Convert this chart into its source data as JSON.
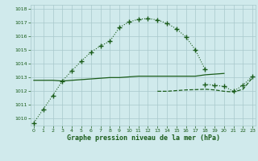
{
  "title": "Graphe pression niveau de la mer (hPa)",
  "bg_color": "#d0eaec",
  "grid_color": "#a8c8cc",
  "line_color": "#1a5c1a",
  "curve1_x": [
    0,
    1,
    2,
    3,
    4,
    5,
    6,
    7,
    8,
    9,
    10,
    11,
    12,
    13,
    14,
    15,
    16,
    17,
    18
  ],
  "curve1_y": [
    1009.7,
    1010.7,
    1011.7,
    1012.75,
    1013.5,
    1014.2,
    1014.85,
    1015.3,
    1015.65,
    1016.65,
    1017.05,
    1017.25,
    1017.3,
    1017.2,
    1016.95,
    1016.55,
    1015.95,
    1015.0,
    1013.6
  ],
  "flat1_x": [
    0,
    1,
    2,
    3,
    4,
    5,
    6,
    7,
    8,
    9,
    10,
    11,
    12,
    13,
    14,
    15,
    16,
    17,
    18,
    19,
    20
  ],
  "flat1_y": [
    1012.8,
    1012.8,
    1012.8,
    1012.75,
    1012.8,
    1012.85,
    1012.9,
    1012.95,
    1013.0,
    1013.0,
    1013.05,
    1013.1,
    1013.1,
    1013.1,
    1013.1,
    1013.1,
    1013.1,
    1013.1,
    1013.2,
    1013.25,
    1013.3
  ],
  "curve2_x": [
    18,
    19,
    20,
    21,
    22,
    23
  ],
  "curve2_y": [
    1012.5,
    1012.45,
    1012.35,
    1012.0,
    1012.45,
    1013.1
  ],
  "flat2_x": [
    13,
    14,
    15,
    16,
    17,
    18,
    19,
    20,
    21,
    22,
    23
  ],
  "flat2_y": [
    1012.0,
    1012.0,
    1012.05,
    1012.1,
    1012.12,
    1012.15,
    1012.1,
    1012.0,
    1011.95,
    1012.15,
    1013.0
  ],
  "ylim": [
    1009.5,
    1018.3
  ],
  "yticks": [
    1010,
    1011,
    1012,
    1013,
    1014,
    1015,
    1016,
    1017,
    1018
  ],
  "xlim": [
    -0.3,
    23.3
  ]
}
